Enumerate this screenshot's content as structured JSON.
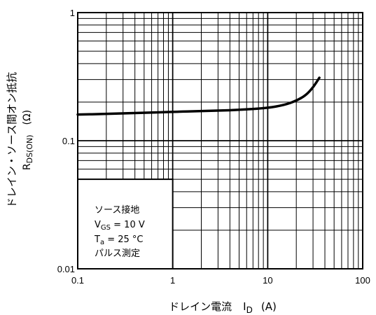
{
  "chart_data": {
    "type": "line",
    "x_scale": "log",
    "y_scale": "log",
    "xlim": [
      0.1,
      100
    ],
    "ylim": [
      0.01,
      1
    ],
    "grid": true,
    "x_ticks": [
      "0.1",
      "1",
      "10",
      "100"
    ],
    "y_ticks": [
      "1",
      "0.1",
      "0.01"
    ],
    "xlabel": {
      "main": "ドレイン電流",
      "symbol": "I",
      "subscript": "D",
      "unit": "(A)"
    },
    "ylabel": {
      "line1": "ドレイン・ソース間オン抵抗",
      "symbol": "R",
      "subscript": "DS(ON)",
      "unit": "(Ω)"
    },
    "annotation": {
      "line1": "ソース接地",
      "line2_symbol": "V",
      "line2_sub": "GS",
      "line2_value": " = 10 V",
      "line3_symbol": "T",
      "line3_sub": "a",
      "line3_value": " = 25 °C",
      "line4": "パルス測定"
    },
    "series": [
      {
        "x": [
          0.1,
          0.2,
          0.5,
          1,
          2,
          5,
          10,
          15,
          20,
          25,
          30,
          35
        ],
        "y": [
          0.16,
          0.162,
          0.165,
          0.168,
          0.17,
          0.174,
          0.18,
          0.19,
          0.205,
          0.225,
          0.26,
          0.31
        ]
      }
    ]
  }
}
